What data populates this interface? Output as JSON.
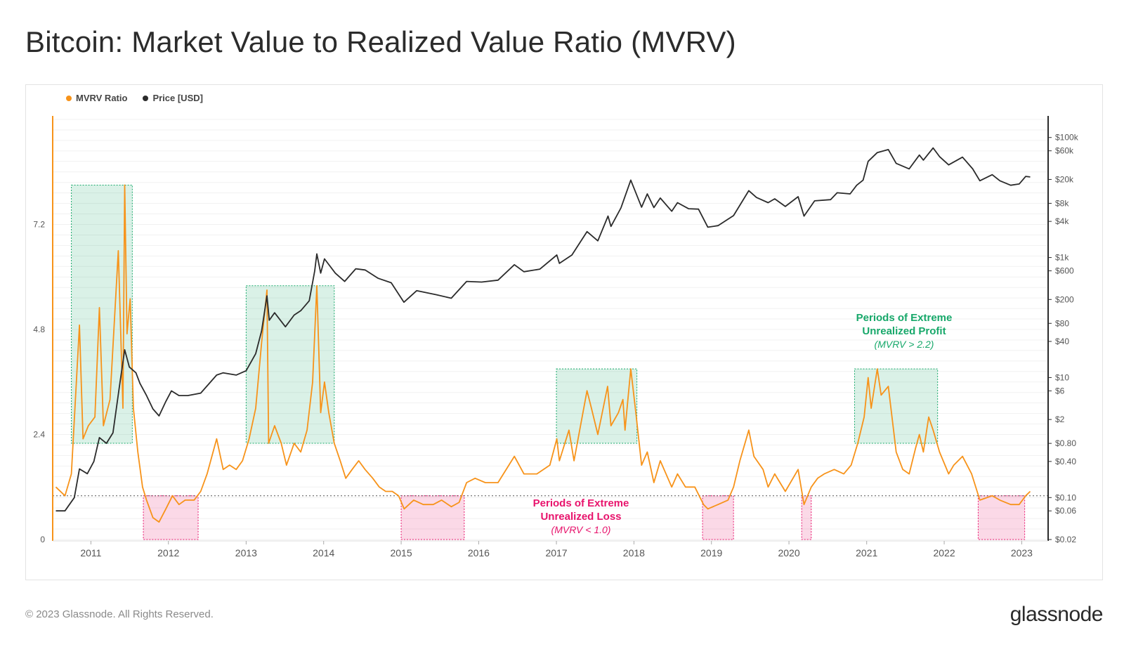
{
  "title": "Bitcoin: Market Value to Realized Value Ratio (MVRV)",
  "legend": [
    {
      "label": "MVRV Ratio",
      "color": "#f7931a"
    },
    {
      "label": "Price [USD]",
      "color": "#2b2b2b"
    }
  ],
  "footer": {
    "copyright": "© 2023 Glassnode. All Rights Reserved.",
    "logo": "glassnode"
  },
  "annotations": {
    "profit": {
      "line1": "Periods of Extreme",
      "line2": "Unrealized Profit",
      "line3": "(MVRV > 2.2)",
      "color": "#17a86a"
    },
    "loss": {
      "line1": "Periods of Extreme",
      "line2": "Unrealized Loss",
      "line3": "(MVRV < 1.0)",
      "color": "#e8136c"
    }
  },
  "chart_data": {
    "type": "line",
    "x_axis": {
      "type": "time",
      "range": [
        "2010-07-15",
        "2023-02-15"
      ],
      "ticks": [
        "2011",
        "2012",
        "2013",
        "2014",
        "2015",
        "2016",
        "2017",
        "2018",
        "2019",
        "2020",
        "2021",
        "2022",
        "2023"
      ]
    },
    "y_left": {
      "label": "",
      "range": [
        0,
        9.6
      ],
      "ticks": [
        "0",
        "2.4",
        "4.8",
        "7.2"
      ]
    },
    "y_right": {
      "label": "",
      "scale": "log",
      "range": [
        0.02,
        200000
      ],
      "ticks": [
        "$0.02",
        "$0.06",
        "$0.10",
        "$0.40",
        "$0.80",
        "$2",
        "$6",
        "$10",
        "$40",
        "$80",
        "$200",
        "$600",
        "$1k",
        "$4k",
        "$8k",
        "$20k",
        "$60k",
        "$100k"
      ]
    },
    "grid": "horizontal",
    "legend_position": "top-left",
    "thresholds": [
      {
        "name": "MVRV = 2.2",
        "value": 2.2,
        "side": "left"
      },
      {
        "name": "MVRV = 1.0",
        "value": 1.0,
        "side": "left"
      }
    ],
    "profit_zones": [
      {
        "start": "2010-10-01",
        "end": "2011-07-15"
      },
      {
        "start": "2013-01-01",
        "end": "2014-02-20"
      },
      {
        "start": "2017-01-01",
        "end": "2018-01-15"
      },
      {
        "start": "2020-11-05",
        "end": "2021-12-01"
      }
    ],
    "loss_zones": [
      {
        "start": "2011-09-05",
        "end": "2012-05-20"
      },
      {
        "start": "2015-01-01",
        "end": "2015-10-25"
      },
      {
        "start": "2018-11-20",
        "end": "2019-04-15"
      },
      {
        "start": "2020-03-01",
        "end": "2020-04-15"
      },
      {
        "start": "2022-06-10",
        "end": "2023-01-15"
      }
    ],
    "series": [
      {
        "name": "MVRV Ratio",
        "axis": "left",
        "color": "#f7931a",
        "points": [
          [
            "2010-07-20",
            1.2
          ],
          [
            "2010-09-01",
            1.0
          ],
          [
            "2010-10-01",
            1.5
          ],
          [
            "2010-11-08",
            4.9
          ],
          [
            "2010-11-25",
            2.3
          ],
          [
            "2010-12-20",
            2.6
          ],
          [
            "2011-01-20",
            2.8
          ],
          [
            "2011-02-10",
            5.3
          ],
          [
            "2011-03-01",
            2.6
          ],
          [
            "2011-04-01",
            3.2
          ],
          [
            "2011-05-10",
            6.6
          ],
          [
            "2011-06-01",
            3.0
          ],
          [
            "2011-06-09",
            8.1
          ],
          [
            "2011-06-20",
            4.7
          ],
          [
            "2011-07-05",
            5.5
          ],
          [
            "2011-07-20",
            3.0
          ],
          [
            "2011-08-10",
            2.0
          ],
          [
            "2011-09-01",
            1.2
          ],
          [
            "2011-09-20",
            0.9
          ],
          [
            "2011-10-20",
            0.5
          ],
          [
            "2011-11-18",
            0.4
          ],
          [
            "2011-12-20",
            0.7
          ],
          [
            "2012-01-20",
            1.0
          ],
          [
            "2012-02-20",
            0.8
          ],
          [
            "2012-03-20",
            0.9
          ],
          [
            "2012-05-01",
            0.9
          ],
          [
            "2012-06-01",
            1.1
          ],
          [
            "2012-07-01",
            1.5
          ],
          [
            "2012-08-15",
            2.3
          ],
          [
            "2012-09-15",
            1.6
          ],
          [
            "2012-10-15",
            1.7
          ],
          [
            "2012-11-15",
            1.6
          ],
          [
            "2012-12-15",
            1.8
          ],
          [
            "2013-01-15",
            2.3
          ],
          [
            "2013-02-15",
            3.0
          ],
          [
            "2013-03-15",
            4.5
          ],
          [
            "2013-04-09",
            5.7
          ],
          [
            "2013-04-17",
            2.2
          ],
          [
            "2013-05-15",
            2.6
          ],
          [
            "2013-06-15",
            2.2
          ],
          [
            "2013-07-10",
            1.7
          ],
          [
            "2013-08-15",
            2.2
          ],
          [
            "2013-09-15",
            2.0
          ],
          [
            "2013-10-15",
            2.5
          ],
          [
            "2013-11-10",
            3.6
          ],
          [
            "2013-11-30",
            5.8
          ],
          [
            "2013-12-18",
            2.9
          ],
          [
            "2014-01-05",
            3.6
          ],
          [
            "2014-01-25",
            2.9
          ],
          [
            "2014-02-20",
            2.2
          ],
          [
            "2014-03-20",
            1.8
          ],
          [
            "2014-04-15",
            1.4
          ],
          [
            "2014-05-15",
            1.6
          ],
          [
            "2014-06-15",
            1.8
          ],
          [
            "2014-07-15",
            1.6
          ],
          [
            "2014-08-20",
            1.4
          ],
          [
            "2014-09-20",
            1.2
          ],
          [
            "2014-10-20",
            1.1
          ],
          [
            "2014-11-20",
            1.1
          ],
          [
            "2014-12-20",
            1.0
          ],
          [
            "2015-01-15",
            0.7
          ],
          [
            "2015-03-01",
            0.9
          ],
          [
            "2015-04-15",
            0.8
          ],
          [
            "2015-06-01",
            0.8
          ],
          [
            "2015-07-10",
            0.9
          ],
          [
            "2015-08-25",
            0.75
          ],
          [
            "2015-10-01",
            0.85
          ],
          [
            "2015-11-05",
            1.3
          ],
          [
            "2015-12-15",
            1.4
          ],
          [
            "2016-02-01",
            1.3
          ],
          [
            "2016-04-01",
            1.3
          ],
          [
            "2016-06-17",
            1.9
          ],
          [
            "2016-08-01",
            1.5
          ],
          [
            "2016-10-01",
            1.5
          ],
          [
            "2016-12-01",
            1.7
          ],
          [
            "2017-01-03",
            2.3
          ],
          [
            "2017-01-15",
            1.8
          ],
          [
            "2017-03-01",
            2.5
          ],
          [
            "2017-03-25",
            1.8
          ],
          [
            "2017-05-25",
            3.4
          ],
          [
            "2017-06-15",
            3.0
          ],
          [
            "2017-07-15",
            2.4
          ],
          [
            "2017-08-30",
            3.5
          ],
          [
            "2017-09-15",
            2.6
          ],
          [
            "2017-10-20",
            2.9
          ],
          [
            "2017-11-10",
            3.2
          ],
          [
            "2017-11-20",
            2.5
          ],
          [
            "2017-12-17",
            3.9
          ],
          [
            "2018-01-10",
            2.9
          ],
          [
            "2018-02-06",
            1.7
          ],
          [
            "2018-03-05",
            2.0
          ],
          [
            "2018-04-05",
            1.3
          ],
          [
            "2018-05-05",
            1.8
          ],
          [
            "2018-06-28",
            1.2
          ],
          [
            "2018-07-25",
            1.5
          ],
          [
            "2018-09-01",
            1.2
          ],
          [
            "2018-10-15",
            1.2
          ],
          [
            "2018-11-25",
            0.8
          ],
          [
            "2018-12-15",
            0.7
          ],
          [
            "2019-02-01",
            0.8
          ],
          [
            "2019-03-20",
            0.9
          ],
          [
            "2019-04-15",
            1.2
          ],
          [
            "2019-05-15",
            1.8
          ],
          [
            "2019-06-26",
            2.5
          ],
          [
            "2019-07-20",
            1.9
          ],
          [
            "2019-09-01",
            1.6
          ],
          [
            "2019-09-25",
            1.2
          ],
          [
            "2019-10-26",
            1.5
          ],
          [
            "2019-12-15",
            1.1
          ],
          [
            "2020-02-13",
            1.6
          ],
          [
            "2020-03-12",
            0.8
          ],
          [
            "2020-04-15",
            1.2
          ],
          [
            "2020-05-15",
            1.4
          ],
          [
            "2020-06-15",
            1.5
          ],
          [
            "2020-08-01",
            1.6
          ],
          [
            "2020-09-15",
            1.5
          ],
          [
            "2020-10-20",
            1.7
          ],
          [
            "2020-11-20",
            2.2
          ],
          [
            "2020-12-20",
            2.8
          ],
          [
            "2021-01-08",
            3.7
          ],
          [
            "2021-01-22",
            3.0
          ],
          [
            "2021-02-20",
            3.9
          ],
          [
            "2021-03-10",
            3.3
          ],
          [
            "2021-04-13",
            3.5
          ],
          [
            "2021-05-20",
            2.0
          ],
          [
            "2021-06-20",
            1.6
          ],
          [
            "2021-07-20",
            1.5
          ],
          [
            "2021-08-20",
            2.1
          ],
          [
            "2021-09-06",
            2.4
          ],
          [
            "2021-09-25",
            2.0
          ],
          [
            "2021-10-20",
            2.8
          ],
          [
            "2021-11-10",
            2.5
          ],
          [
            "2021-12-10",
            2.0
          ],
          [
            "2022-01-22",
            1.5
          ],
          [
            "2022-02-15",
            1.7
          ],
          [
            "2022-03-28",
            1.9
          ],
          [
            "2022-05-10",
            1.5
          ],
          [
            "2022-06-18",
            0.9
          ],
          [
            "2022-08-15",
            1.0
          ],
          [
            "2022-09-20",
            0.9
          ],
          [
            "2022-11-10",
            0.8
          ],
          [
            "2022-12-20",
            0.8
          ],
          [
            "2023-01-20",
            1.0
          ],
          [
            "2023-02-10",
            1.1
          ]
        ]
      },
      {
        "name": "Price [USD]",
        "axis": "right",
        "color": "#2b2b2b",
        "points": [
          [
            "2010-07-20",
            0.06
          ],
          [
            "2010-09-01",
            0.06
          ],
          [
            "2010-10-15",
            0.1
          ],
          [
            "2010-11-08",
            0.3
          ],
          [
            "2010-12-15",
            0.25
          ],
          [
            "2011-01-15",
            0.4
          ],
          [
            "2011-02-10",
            1.0
          ],
          [
            "2011-03-15",
            0.8
          ],
          [
            "2011-04-15",
            1.2
          ],
          [
            "2011-05-15",
            7
          ],
          [
            "2011-06-09",
            29
          ],
          [
            "2011-07-01",
            15
          ],
          [
            "2011-08-01",
            12
          ],
          [
            "2011-08-20",
            8
          ],
          [
            "2011-09-20",
            5
          ],
          [
            "2011-10-20",
            3
          ],
          [
            "2011-11-18",
            2.3
          ],
          [
            "2011-12-20",
            4
          ],
          [
            "2012-01-15",
            6
          ],
          [
            "2012-02-20",
            5
          ],
          [
            "2012-04-01",
            5
          ],
          [
            "2012-06-01",
            5.5
          ],
          [
            "2012-08-15",
            11
          ],
          [
            "2012-09-15",
            12
          ],
          [
            "2012-11-15",
            11
          ],
          [
            "2013-01-01",
            13
          ],
          [
            "2013-02-15",
            25
          ],
          [
            "2013-03-15",
            60
          ],
          [
            "2013-04-09",
            230
          ],
          [
            "2013-04-20",
            90
          ],
          [
            "2013-05-15",
            120
          ],
          [
            "2013-07-05",
            70
          ],
          [
            "2013-08-15",
            110
          ],
          [
            "2013-09-15",
            130
          ],
          [
            "2013-10-25",
            190
          ],
          [
            "2013-11-20",
            600
          ],
          [
            "2013-11-30",
            1150
          ],
          [
            "2013-12-18",
            550
          ],
          [
            "2014-01-05",
            950
          ],
          [
            "2014-02-25",
            550
          ],
          [
            "2014-04-10",
            400
          ],
          [
            "2014-06-01",
            650
          ],
          [
            "2014-07-15",
            620
          ],
          [
            "2014-09-15",
            450
          ],
          [
            "2014-11-15",
            380
          ],
          [
            "2015-01-14",
            180
          ],
          [
            "2015-03-15",
            280
          ],
          [
            "2015-06-15",
            240
          ],
          [
            "2015-08-25",
            210
          ],
          [
            "2015-11-05",
            400
          ],
          [
            "2016-01-15",
            390
          ],
          [
            "2016-04-01",
            420
          ],
          [
            "2016-06-17",
            760
          ],
          [
            "2016-08-01",
            580
          ],
          [
            "2016-10-15",
            640
          ],
          [
            "2017-01-03",
            1100
          ],
          [
            "2017-01-15",
            800
          ],
          [
            "2017-03-15",
            1100
          ],
          [
            "2017-05-25",
            2700
          ],
          [
            "2017-07-15",
            1900
          ],
          [
            "2017-09-01",
            4900
          ],
          [
            "2017-09-15",
            3300
          ],
          [
            "2017-11-01",
            6700
          ],
          [
            "2017-12-17",
            19500
          ],
          [
            "2018-02-06",
            6900
          ],
          [
            "2018-03-05",
            11500
          ],
          [
            "2018-04-05",
            6800
          ],
          [
            "2018-05-05",
            9800
          ],
          [
            "2018-06-28",
            5900
          ],
          [
            "2018-07-25",
            8200
          ],
          [
            "2018-09-15",
            6500
          ],
          [
            "2018-11-01",
            6400
          ],
          [
            "2018-12-15",
            3200
          ],
          [
            "2019-02-01",
            3400
          ],
          [
            "2019-04-15",
            5000
          ],
          [
            "2019-06-26",
            13000
          ],
          [
            "2019-08-01",
            10000
          ],
          [
            "2019-09-25",
            8200
          ],
          [
            "2019-10-26",
            9500
          ],
          [
            "2019-12-15",
            7100
          ],
          [
            "2020-02-13",
            10300
          ],
          [
            "2020-03-12",
            4900
          ],
          [
            "2020-05-01",
            8800
          ],
          [
            "2020-07-15",
            9200
          ],
          [
            "2020-08-15",
            12000
          ],
          [
            "2020-10-15",
            11500
          ],
          [
            "2020-11-15",
            16000
          ],
          [
            "2020-12-15",
            19500
          ],
          [
            "2021-01-08",
            40000
          ],
          [
            "2021-02-20",
            56000
          ],
          [
            "2021-04-13",
            63000
          ],
          [
            "2021-05-20",
            37000
          ],
          [
            "2021-07-20",
            30000
          ],
          [
            "2021-09-06",
            51000
          ],
          [
            "2021-09-25",
            42000
          ],
          [
            "2021-11-10",
            67000
          ],
          [
            "2021-12-10",
            48000
          ],
          [
            "2022-01-22",
            35000
          ],
          [
            "2022-03-28",
            47000
          ],
          [
            "2022-05-15",
            30000
          ],
          [
            "2022-06-18",
            19000
          ],
          [
            "2022-08-15",
            24000
          ],
          [
            "2022-09-20",
            19000
          ],
          [
            "2022-11-10",
            16000
          ],
          [
            "2022-12-20",
            16800
          ],
          [
            "2023-01-20",
            22500
          ],
          [
            "2023-02-10",
            22000
          ]
        ]
      }
    ]
  }
}
